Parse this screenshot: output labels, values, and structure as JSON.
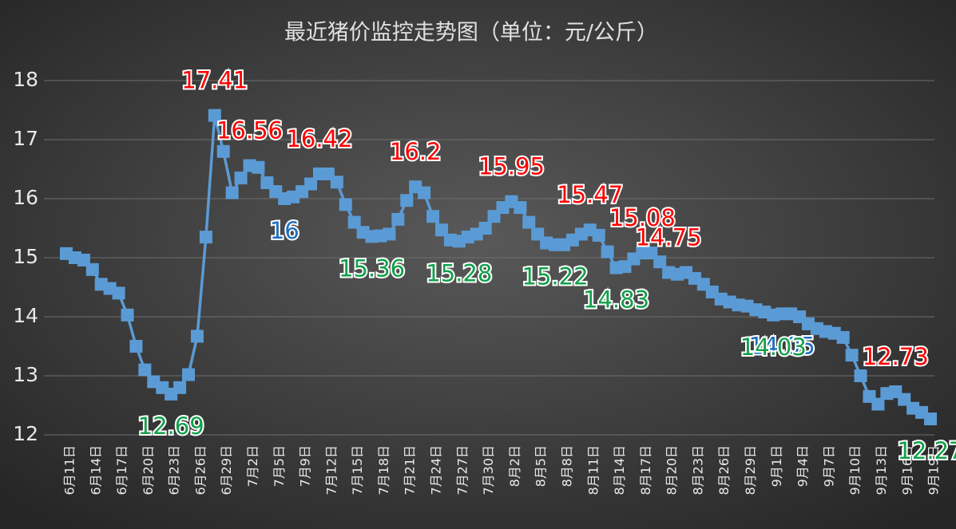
{
  "chart_data": {
    "type": "line",
    "title": "最近猪价监控走势图（单位：元/公斤）",
    "categories": [
      "6月11日",
      null,
      null,
      "6月14日",
      null,
      null,
      "6月17日",
      null,
      null,
      "6月20日",
      null,
      null,
      "6月23日",
      null,
      null,
      "6月26日",
      null,
      null,
      "6月29日",
      null,
      null,
      "7月2日",
      null,
      null,
      "7月5日",
      null,
      null,
      "7月9日",
      null,
      null,
      "7月12日",
      null,
      null,
      "7月15日",
      null,
      null,
      "7月18日",
      null,
      null,
      "7月21日",
      null,
      null,
      "7月24日",
      null,
      null,
      "7月27日",
      null,
      null,
      "7月30日",
      null,
      null,
      "8月2日",
      null,
      null,
      "8月5日",
      null,
      null,
      "8月8日",
      null,
      null,
      "8月11日",
      null,
      null,
      "8月14日",
      null,
      null,
      "8月17日",
      null,
      null,
      "8月20日",
      null,
      null,
      "8月23日",
      null,
      null,
      "8月26日",
      null,
      null,
      "8月29日",
      null,
      null,
      "9月1日",
      null,
      null,
      "9月4日",
      null,
      null,
      "9月7日",
      null,
      null,
      "9月10日",
      null,
      null,
      "9月13日",
      null,
      null,
      "9月16日",
      null,
      null,
      "9月19日"
    ],
    "series": [
      {
        "color": "#5b9bd5",
        "values": [
          15.07,
          15.0,
          14.96,
          14.8,
          14.55,
          14.48,
          14.4,
          14.03,
          13.5,
          13.1,
          12.9,
          12.8,
          12.69,
          12.8,
          13.02,
          13.67,
          15.35,
          17.41,
          16.8,
          16.1,
          16.35,
          16.56,
          16.53,
          16.27,
          16.12,
          16,
          16.03,
          16.12,
          16.25,
          16.42,
          16.42,
          16.28,
          15.9,
          15.6,
          15.43,
          15.36,
          15.37,
          15.4,
          15.65,
          15.97,
          16.2,
          16.1,
          15.7,
          15.47,
          15.3,
          15.28,
          15.35,
          15.4,
          15.5,
          15.7,
          15.85,
          15.95,
          15.85,
          15.6,
          15.4,
          15.25,
          15.22,
          15.22,
          15.3,
          15.4,
          15.47,
          15.38,
          15.1,
          14.83,
          14.85,
          14.98,
          15.08,
          15.08,
          14.93,
          14.75,
          14.72,
          14.75,
          14.65,
          14.55,
          14.42,
          14.3,
          14.25,
          14.2,
          14.18,
          14.12,
          14.08,
          14.03,
          14.05,
          14.05,
          14.0,
          13.88,
          13.8,
          13.75,
          13.72,
          13.65,
          13.35,
          13.0,
          12.65,
          12.52,
          12.7,
          12.73,
          12.6,
          12.45,
          12.38,
          12.27
        ]
      }
    ],
    "data_labels": [
      {
        "index": 17,
        "color": "#ff0000"
      },
      {
        "index": 21,
        "color": "#ff0000"
      },
      {
        "index": 29,
        "color": "#ff0000"
      },
      {
        "index": 40,
        "color": "#ff0000"
      },
      {
        "index": 51,
        "color": "#ff0000"
      },
      {
        "index": 60,
        "color": "#ff0000"
      },
      {
        "index": 66,
        "color": "#ff0000"
      },
      {
        "index": 69,
        "color": "#ff0000"
      },
      {
        "index": 95,
        "color": "#ff0000"
      },
      {
        "index": 25,
        "color": "#1f6fbf"
      },
      {
        "index": 82,
        "color": "#1f6fbf"
      },
      {
        "index": 12,
        "color": "#12a04a"
      },
      {
        "index": 35,
        "color": "#12a04a"
      },
      {
        "index": 45,
        "color": "#12a04a"
      },
      {
        "index": 56,
        "color": "#12a04a"
      },
      {
        "index": 63,
        "color": "#12a04a"
      },
      {
        "index": 81,
        "color": "#12a04a"
      },
      {
        "index": 99,
        "color": "#12a04a"
      }
    ],
    "ylim": [
      12,
      18
    ],
    "yticks": [
      12,
      13,
      14,
      15,
      16,
      17,
      18
    ],
    "grid": true
  }
}
